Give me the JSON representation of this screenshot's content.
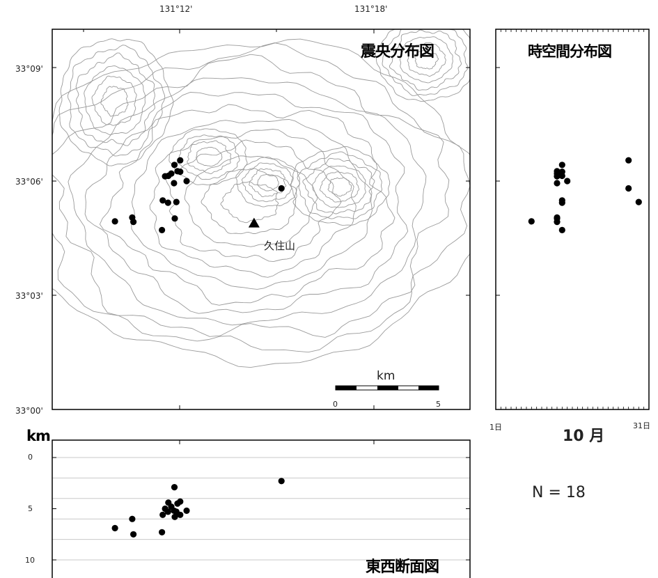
{
  "map_panel": {
    "title": "震央分布図",
    "lon_ticks": [
      "131°12'",
      "131°18'"
    ],
    "lat_ticks": [
      "33°09'",
      "33°06'",
      "33°03'",
      "33°00'"
    ],
    "volcano": {
      "name": "久住山",
      "lon": 131.2383,
      "lat": 33.0817
    },
    "scale_bar": {
      "unit": "km",
      "min_label": "0",
      "max_label": "5",
      "length_km": 5
    }
  },
  "time_panel": {
    "title": "時空間分布図",
    "start_label": "1日",
    "end_label": "31日",
    "month_label": "10 月"
  },
  "section_panel": {
    "title": "東西断面図",
    "unit_label": "km",
    "depth_ticks": [
      "0",
      "5",
      "10"
    ]
  },
  "count_label": "N = 18",
  "colors": {
    "event": "#000000",
    "contour": "#9a9a9a",
    "grid": "#c8c8c8"
  },
  "chart_data": {
    "type": "scatter",
    "map_extent": {
      "lon": [
        131.1667,
        131.35
      ],
      "lat": [
        33.0,
        33.15
      ]
    },
    "events": [
      {
        "lon": 131.1973,
        "lat": 33.1073,
        "depth_km": 2.9,
        "day": 14
      },
      {
        "lon": 131.1942,
        "lat": 33.1025,
        "depth_km": 4.4,
        "day": 14
      },
      {
        "lon": 131.1957,
        "lat": 33.1035,
        "depth_km": 4.8,
        "day": 13
      },
      {
        "lon": 131.1925,
        "lat": 33.1023,
        "depth_km": 5.0,
        "day": 13
      },
      {
        "lon": 131.1989,
        "lat": 33.1045,
        "depth_km": 4.5,
        "day": 13
      },
      {
        "lon": 131.2003,
        "lat": 33.1043,
        "depth_km": 4.3,
        "day": 14
      },
      {
        "lon": 131.2036,
        "lat": 33.1002,
        "depth_km": 5.2,
        "day": 15
      },
      {
        "lon": 131.1971,
        "lat": 33.0993,
        "depth_km": 5.2,
        "day": 13
      },
      {
        "lon": 131.1913,
        "lat": 33.0917,
        "depth_km": 5.6,
        "day": 14
      },
      {
        "lon": 131.194,
        "lat": 33.0907,
        "depth_km": 5.3,
        "day": 14
      },
      {
        "lon": 131.1975,
        "lat": 33.0838,
        "depth_km": 5.8,
        "day": 13
      },
      {
        "lon": 131.1909,
        "lat": 33.0787,
        "depth_km": 7.3,
        "day": 14
      },
      {
        "lon": 131.1756,
        "lat": 33.0842,
        "depth_km": 6.0,
        "day": 13
      },
      {
        "lon": 131.1762,
        "lat": 33.0823,
        "depth_km": 7.5,
        "day": 13
      },
      {
        "lon": 131.1667,
        "lat": 33.0825,
        "depth_km": 6.9,
        "day": 8
      },
      {
        "lon": 131.2524,
        "lat": 33.097,
        "depth_km": 2.3,
        "day": 27
      },
      {
        "lon": 131.2003,
        "lat": 33.1093,
        "depth_km": 5.6,
        "day": 27
      },
      {
        "lon": 131.1983,
        "lat": 33.091,
        "depth_km": 5.3,
        "day": 29
      }
    ]
  }
}
